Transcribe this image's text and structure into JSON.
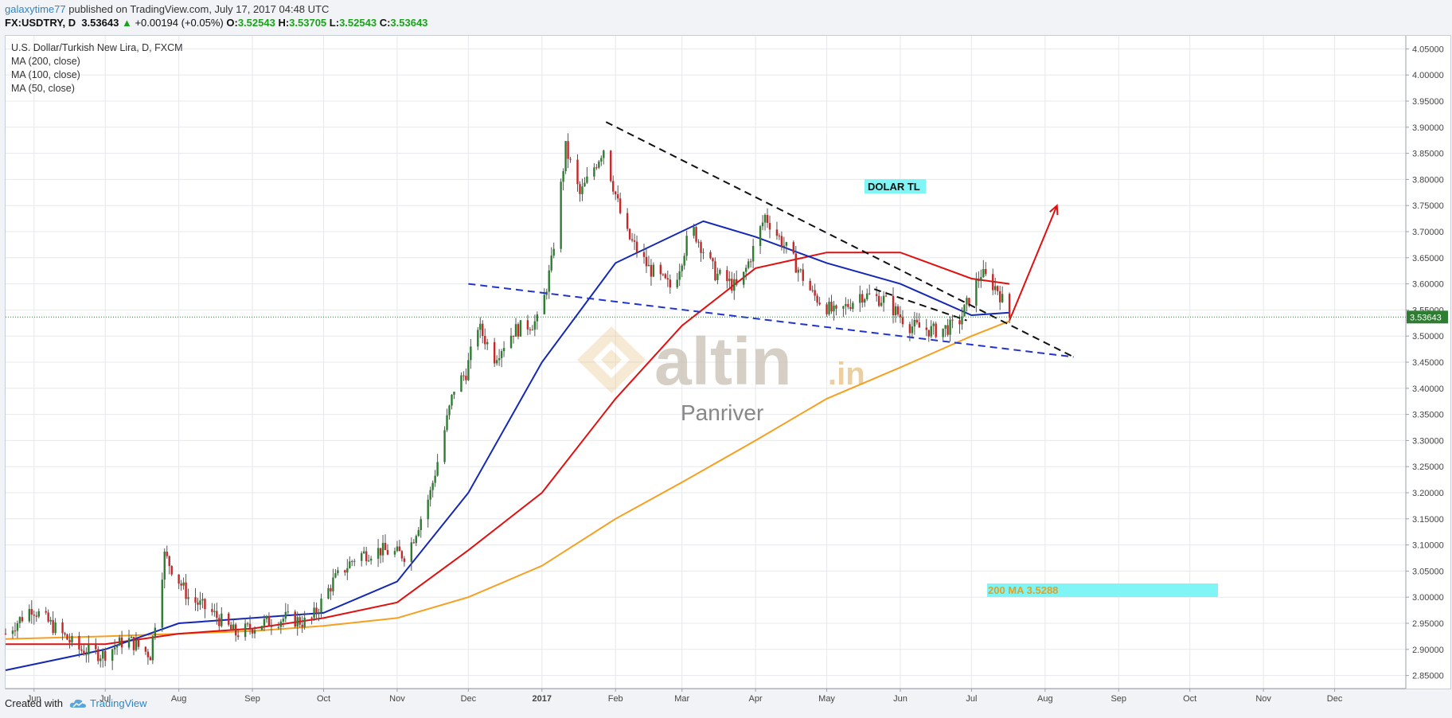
{
  "header": {
    "author": "galaxytime77",
    "published_text": "published on TradingView.com, July 17, 2017 04:48 UTC",
    "symbol_line": "FX:USDTRY, D",
    "last": "3.53643",
    "change": "+0.00194 (+0.05%)",
    "o_label": "O:",
    "o": "3.52543",
    "h_label": "H:",
    "h": "3.53705",
    "l_label": "L:",
    "l": "3.52543",
    "c_label": "C:",
    "c": "3.53643"
  },
  "legend": {
    "title": "U.S. Dollar/Turkish New Lira, D, FXCM",
    "ma200": "MA (200, close)",
    "ma100": "MA (100, close)",
    "ma50": "MA (50, close)"
  },
  "annotations": {
    "dolar_tl": "DOLAR  TL",
    "ma200_label": "200 MA 3.5288",
    "price_tag": "3.53643",
    "watermark_brand": "altin",
    "watermark_suffix": ".in",
    "watermark_sub": "Panriver"
  },
  "footer": {
    "created_with": "Created with",
    "brand": "TradingView"
  },
  "colors": {
    "up": "#2e7d32",
    "down": "#c62828",
    "ma50": "#1428b4",
    "ma100": "#e01010",
    "ma200": "#f5a020",
    "trend_black": "#111111",
    "trend_blue": "#2233cc",
    "arrow": "#e01010",
    "label_bg": "#7ff5f5"
  },
  "chart_data": {
    "type": "candlestick",
    "title": "U.S. Dollar/Turkish New Lira, D, FXCM",
    "x_ticks": [
      "Jun",
      "Jul",
      "Aug",
      "Sep",
      "Oct",
      "Nov",
      "Dec",
      "2017",
      "Feb",
      "Mar",
      "Apr",
      "May",
      "Jun",
      "Jul",
      "Aug",
      "Sep",
      "Oct",
      "Nov",
      "Dec"
    ],
    "y_ticks": [
      "2.85000",
      "2.90000",
      "2.95000",
      "3.00000",
      "3.05000",
      "3.10000",
      "3.15000",
      "3.20000",
      "3.25000",
      "3.30000",
      "3.35000",
      "3.40000",
      "3.45000",
      "3.50000",
      "3.55000",
      "3.60000",
      "3.65000",
      "3.70000",
      "3.75000",
      "3.80000",
      "3.85000",
      "3.90000",
      "3.95000",
      "4.00000",
      "4.05000"
    ],
    "ylim": [
      2.825,
      4.075
    ],
    "price_anchors": [
      {
        "date": "2016-05-20",
        "close": 2.93
      },
      {
        "date": "2016-05-31",
        "close": 2.98
      },
      {
        "date": "2016-06-10",
        "close": 2.94
      },
      {
        "date": "2016-06-20",
        "close": 2.9
      },
      {
        "date": "2016-06-30",
        "close": 2.89
      },
      {
        "date": "2016-07-10",
        "close": 2.92
      },
      {
        "date": "2016-07-20",
        "close": 2.89
      },
      {
        "date": "2016-07-26",
        "close": 3.08
      },
      {
        "date": "2016-08-05",
        "close": 3.0
      },
      {
        "date": "2016-08-15",
        "close": 2.97
      },
      {
        "date": "2016-08-25",
        "close": 2.93
      },
      {
        "date": "2016-09-05",
        "close": 2.95
      },
      {
        "date": "2016-09-15",
        "close": 2.96
      },
      {
        "date": "2016-09-25",
        "close": 2.95
      },
      {
        "date": "2016-10-05",
        "close": 3.03
      },
      {
        "date": "2016-10-15",
        "close": 3.08
      },
      {
        "date": "2016-10-25",
        "close": 3.09
      },
      {
        "date": "2016-11-05",
        "close": 3.08
      },
      {
        "date": "2016-11-15",
        "close": 3.2
      },
      {
        "date": "2016-11-25",
        "close": 3.4
      },
      {
        "date": "2016-11-30",
        "close": 3.43
      },
      {
        "date": "2016-12-05",
        "close": 3.52
      },
      {
        "date": "2016-12-12",
        "close": 3.46
      },
      {
        "date": "2016-12-20",
        "close": 3.51
      },
      {
        "date": "2016-12-31",
        "close": 3.53
      },
      {
        "date": "2017-01-05",
        "close": 3.64
      },
      {
        "date": "2017-01-11",
        "close": 3.86
      },
      {
        "date": "2017-01-17",
        "close": 3.77
      },
      {
        "date": "2017-01-27",
        "close": 3.86
      },
      {
        "date": "2017-02-05",
        "close": 3.7
      },
      {
        "date": "2017-02-15",
        "close": 3.63
      },
      {
        "date": "2017-02-25",
        "close": 3.59
      },
      {
        "date": "2017-03-05",
        "close": 3.71
      },
      {
        "date": "2017-03-15",
        "close": 3.62
      },
      {
        "date": "2017-03-25",
        "close": 3.59
      },
      {
        "date": "2017-04-05",
        "close": 3.73
      },
      {
        "date": "2017-04-15",
        "close": 3.66
      },
      {
        "date": "2017-04-25",
        "close": 3.58
      },
      {
        "date": "2017-05-05",
        "close": 3.54
      },
      {
        "date": "2017-05-15",
        "close": 3.58
      },
      {
        "date": "2017-05-25",
        "close": 3.57
      },
      {
        "date": "2017-06-05",
        "close": 3.52
      },
      {
        "date": "2017-06-15",
        "close": 3.51
      },
      {
        "date": "2017-06-25",
        "close": 3.52
      },
      {
        "date": "2017-07-05",
        "close": 3.62
      },
      {
        "date": "2017-07-12",
        "close": 3.59
      },
      {
        "date": "2017-07-17",
        "close": 3.53643
      }
    ],
    "ma50_points": [
      {
        "date": "2016-05-20",
        "value": 2.86
      },
      {
        "date": "2016-07-01",
        "value": 2.9
      },
      {
        "date": "2016-08-01",
        "value": 2.95
      },
      {
        "date": "2016-09-01",
        "value": 2.96
      },
      {
        "date": "2016-10-01",
        "value": 2.97
      },
      {
        "date": "2016-11-01",
        "value": 3.03
      },
      {
        "date": "2016-12-01",
        "value": 3.2
      },
      {
        "date": "2017-01-01",
        "value": 3.45
      },
      {
        "date": "2017-02-01",
        "value": 3.64
      },
      {
        "date": "2017-03-10",
        "value": 3.72
      },
      {
        "date": "2017-04-01",
        "value": 3.69
      },
      {
        "date": "2017-05-01",
        "value": 3.64
      },
      {
        "date": "2017-06-01",
        "value": 3.6
      },
      {
        "date": "2017-07-01",
        "value": 3.54
      },
      {
        "date": "2017-07-17",
        "value": 3.545
      }
    ],
    "ma100_points": [
      {
        "date": "2016-05-20",
        "value": 2.91
      },
      {
        "date": "2016-07-01",
        "value": 2.91
      },
      {
        "date": "2016-08-01",
        "value": 2.93
      },
      {
        "date": "2016-09-01",
        "value": 2.94
      },
      {
        "date": "2016-10-01",
        "value": 2.96
      },
      {
        "date": "2016-11-01",
        "value": 2.99
      },
      {
        "date": "2016-12-01",
        "value": 3.09
      },
      {
        "date": "2017-01-01",
        "value": 3.2
      },
      {
        "date": "2017-02-01",
        "value": 3.38
      },
      {
        "date": "2017-03-01",
        "value": 3.52
      },
      {
        "date": "2017-04-01",
        "value": 3.63
      },
      {
        "date": "2017-05-01",
        "value": 3.66
      },
      {
        "date": "2017-06-01",
        "value": 3.66
      },
      {
        "date": "2017-07-01",
        "value": 3.61
      },
      {
        "date": "2017-07-17",
        "value": 3.6
      }
    ],
    "ma200_points": [
      {
        "date": "2016-05-20",
        "value": 2.92
      },
      {
        "date": "2016-07-01",
        "value": 2.925
      },
      {
        "date": "2016-08-01",
        "value": 2.93
      },
      {
        "date": "2016-09-01",
        "value": 2.935
      },
      {
        "date": "2016-10-01",
        "value": 2.945
      },
      {
        "date": "2016-11-01",
        "value": 2.96
      },
      {
        "date": "2016-12-01",
        "value": 3.0
      },
      {
        "date": "2017-01-01",
        "value": 3.06
      },
      {
        "date": "2017-02-01",
        "value": 3.15
      },
      {
        "date": "2017-03-01",
        "value": 3.22
      },
      {
        "date": "2017-04-01",
        "value": 3.3
      },
      {
        "date": "2017-05-01",
        "value": 3.38
      },
      {
        "date": "2017-06-01",
        "value": 3.44
      },
      {
        "date": "2017-07-01",
        "value": 3.5
      },
      {
        "date": "2017-07-17",
        "value": 3.5288
      }
    ],
    "trendlines": [
      {
        "name": "upper-resistance",
        "color": "black",
        "style": "dashed",
        "from": {
          "date": "2017-01-28",
          "value": 3.91
        },
        "to": {
          "date": "2017-08-13",
          "value": 3.46
        }
      },
      {
        "name": "short-resistance",
        "color": "black",
        "style": "dashed",
        "from": {
          "date": "2017-05-21",
          "value": 3.59
        },
        "to": {
          "date": "2017-06-29",
          "value": 3.53
        }
      },
      {
        "name": "lower-support",
        "color": "blue",
        "style": "dashed",
        "from": {
          "date": "2016-12-01",
          "value": 3.6
        },
        "to": {
          "date": "2017-08-13",
          "value": 3.46
        }
      }
    ],
    "arrow": {
      "from": {
        "date": "2017-07-17",
        "value": 3.53
      },
      "to": {
        "date": "2017-08-06",
        "value": 3.75
      }
    },
    "last_price": 3.53643
  }
}
